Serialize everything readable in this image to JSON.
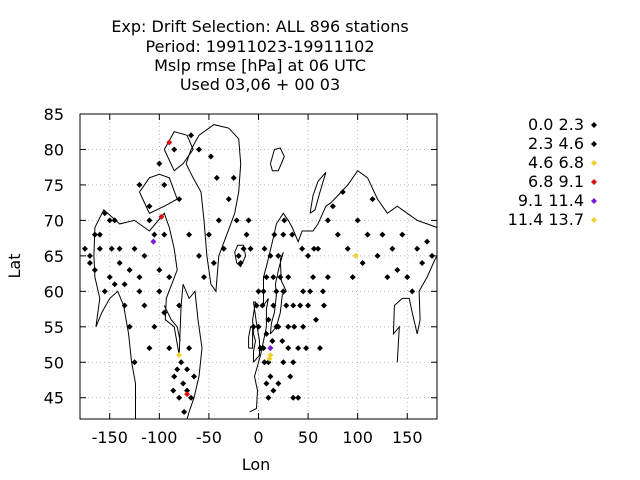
{
  "chart_data": {
    "type": "scatter",
    "title_lines": [
      "Exp: Drift   Selection: ALL    896 stations",
      "Period: 19911023-19911102",
      "Mslp rmse [hPa] at  06 UTC",
      "Used  03,06  + 00 03"
    ],
    "xlabel": "Lon",
    "ylabel": "Lat",
    "xlim": [
      -180,
      180
    ],
    "ylim": [
      42,
      85
    ],
    "xticks": [
      -150,
      -100,
      -50,
      0,
      50,
      100,
      150
    ],
    "yticks": [
      45,
      50,
      55,
      60,
      65,
      70,
      75,
      80,
      85
    ],
    "grid": true,
    "legend_position": "right",
    "colors": {
      "black": "#000000",
      "yellow": "#f0d030",
      "red": "#dd1111",
      "purple": "#7a1ad6",
      "coast": "#000000"
    },
    "series": [
      {
        "name": "0.0 2.3",
        "color": "#000000",
        "points": [
          [
            -170,
            65
          ],
          [
            -165,
            63
          ],
          [
            -160,
            66
          ],
          [
            -155,
            60
          ],
          [
            -150,
            62
          ],
          [
            -148,
            66
          ],
          [
            -145,
            61
          ],
          [
            -140,
            64
          ],
          [
            -135,
            58
          ],
          [
            -130,
            55
          ],
          [
            -125,
            50
          ],
          [
            -120,
            60
          ],
          [
            -115,
            65
          ],
          [
            -110,
            70
          ],
          [
            -105,
            68
          ],
          [
            -100,
            63
          ],
          [
            -95,
            57
          ],
          [
            -90,
            52
          ],
          [
            -85,
            48
          ],
          [
            -80,
            45
          ],
          [
            -75,
            43
          ],
          [
            -78,
            50
          ],
          [
            -72,
            46
          ],
          [
            -68,
            45
          ],
          [
            -65,
            48
          ],
          [
            -70,
            52
          ],
          [
            -80,
            58
          ],
          [
            -90,
            62
          ],
          [
            -95,
            75
          ],
          [
            -110,
            72
          ],
          [
            -120,
            75
          ],
          [
            -100,
            78
          ],
          [
            -80,
            73
          ],
          [
            -70,
            68
          ],
          [
            -60,
            65
          ],
          [
            -55,
            62
          ],
          [
            -50,
            68
          ],
          [
            -45,
            64
          ],
          [
            -40,
            70
          ],
          [
            -30,
            73
          ],
          [
            -25,
            76
          ],
          [
            -20,
            65
          ],
          [
            -18,
            64
          ],
          [
            -15,
            66
          ],
          [
            -10,
            70
          ],
          [
            -5,
            55
          ],
          [
            0,
            55
          ],
          [
            0,
            60
          ],
          [
            5,
            60
          ],
          [
            5,
            52
          ],
          [
            10,
            50
          ],
          [
            10,
            56
          ],
          [
            15,
            58
          ],
          [
            15,
            62
          ],
          [
            20,
            65
          ],
          [
            20,
            55
          ],
          [
            25,
            60
          ],
          [
            25,
            68
          ],
          [
            30,
            62
          ],
          [
            30,
            55
          ],
          [
            35,
            58
          ],
          [
            35,
            50
          ],
          [
            40,
            45
          ],
          [
            40,
            52
          ],
          [
            45,
            55
          ],
          [
            45,
            60
          ],
          [
            50,
            65
          ],
          [
            50,
            58
          ],
          [
            55,
            62
          ],
          [
            60,
            66
          ],
          [
            65,
            60
          ],
          [
            70,
            70
          ],
          [
            75,
            72
          ],
          [
            80,
            68
          ],
          [
            85,
            74
          ],
          [
            90,
            66
          ],
          [
            95,
            62
          ],
          [
            100,
            70
          ],
          [
            105,
            64
          ],
          [
            110,
            68
          ],
          [
            115,
            73
          ],
          [
            120,
            65
          ],
          [
            125,
            68
          ],
          [
            130,
            62
          ],
          [
            135,
            66
          ],
          [
            140,
            63
          ],
          [
            145,
            68
          ],
          [
            150,
            62
          ],
          [
            155,
            60
          ],
          [
            160,
            66
          ],
          [
            165,
            64
          ],
          [
            170,
            67
          ],
          [
            175,
            65
          ],
          [
            10,
            45
          ],
          [
            12,
            48
          ],
          [
            8,
            47
          ],
          [
            15,
            46
          ],
          [
            20,
            47
          ],
          [
            25,
            50
          ],
          [
            30,
            52
          ],
          [
            35,
            45
          ],
          [
            28,
            58
          ],
          [
            22,
            62
          ],
          [
            18,
            60
          ],
          [
            12,
            65
          ],
          [
            8,
            62
          ],
          [
            2,
            52
          ],
          [
            6,
            50
          ],
          [
            8,
            54
          ],
          [
            14,
            53
          ],
          [
            18,
            55
          ],
          [
            24,
            53
          ],
          [
            32,
            48
          ],
          [
            36,
            55
          ],
          [
            42,
            58
          ],
          [
            48,
            52
          ],
          [
            52,
            60
          ],
          [
            58,
            56
          ],
          [
            62,
            52
          ],
          [
            66,
            58
          ],
          [
            70,
            62
          ],
          [
            56,
            66
          ],
          [
            44,
            66
          ],
          [
            34,
            68
          ],
          [
            26,
            70
          ],
          [
            16,
            68
          ],
          [
            6,
            66
          ],
          [
            -2,
            58
          ],
          [
            4,
            58
          ],
          [
            -8,
            66
          ],
          [
            -12,
            68
          ],
          [
            -22,
            70
          ],
          [
            -35,
            66
          ],
          [
            -42,
            76
          ],
          [
            -48,
            79
          ],
          [
            -60,
            80
          ],
          [
            -68,
            82
          ],
          [
            -85,
            80
          ],
          [
            -95,
            68
          ],
          [
            -100,
            60
          ],
          [
            -105,
            55
          ],
          [
            -110,
            52
          ],
          [
            -115,
            58
          ],
          [
            -120,
            62
          ],
          [
            -125,
            66
          ],
          [
            -130,
            63
          ],
          [
            -135,
            61
          ],
          [
            -140,
            66
          ],
          [
            -145,
            70
          ],
          [
            -150,
            70
          ],
          [
            -155,
            71
          ],
          [
            -160,
            68
          ],
          [
            -165,
            68
          ],
          [
            -170,
            64
          ],
          [
            -175,
            66
          ]
        ]
      },
      {
        "name": "2.3 4.6",
        "color": "#000000",
        "points": [
          [
            -82,
            49
          ],
          [
            -76,
            47
          ],
          [
            -86,
            46
          ],
          [
            -72,
            49
          ]
        ]
      },
      {
        "name": "4.6 6.8",
        "color": "#f0d030",
        "points": [
          [
            -80,
            51
          ],
          [
            12,
            51
          ],
          [
            98,
            65
          ]
        ]
      },
      {
        "name": "6.8 9.1",
        "color": "#dd1111",
        "points": [
          [
            -98,
            70.5
          ],
          [
            -72,
            45.5
          ],
          [
            -90,
            81
          ]
        ]
      },
      {
        "name": "9.1 11.4",
        "color": "#7a1ad6",
        "points": [
          [
            -106,
            67
          ],
          [
            12,
            52
          ]
        ]
      },
      {
        "name": "11.4 13.7",
        "color": "#f0d030",
        "points": [
          [
            11,
            50.5
          ]
        ]
      }
    ]
  }
}
